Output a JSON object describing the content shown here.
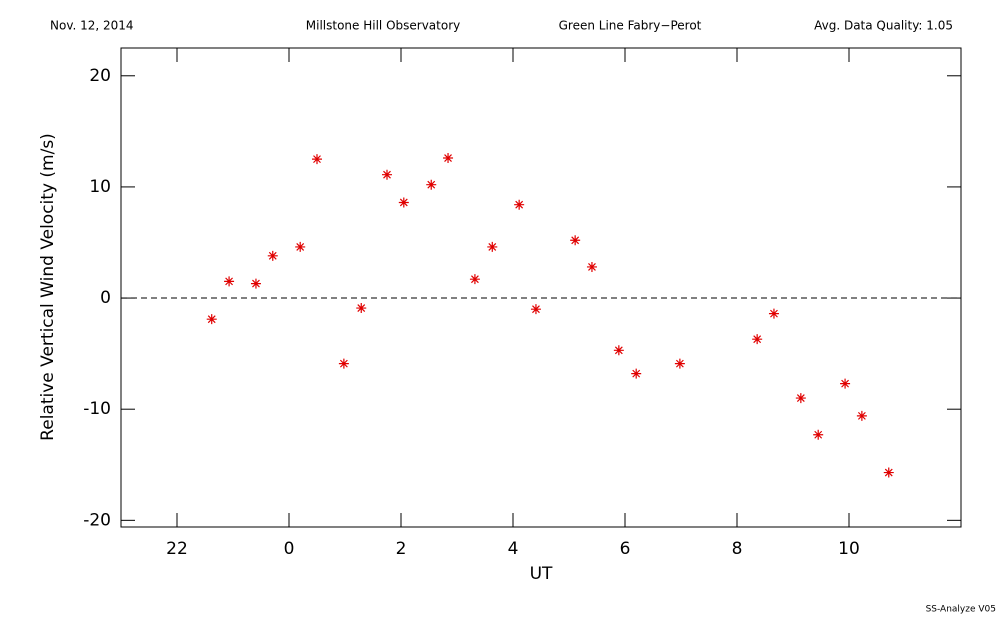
{
  "chart_data": {
    "type": "scatter",
    "header": [
      "Nov. 12, 2014",
      "Millstone Hill Observatory",
      "Green Line Fabry−Perot",
      "Avg. Data Quality: 1.05"
    ],
    "footer": "SS-Analyze V05",
    "x_label": "UT",
    "y_label": "Relative Vertical Wind Velocity (m/s)",
    "color": "#e00000",
    "marker": "asterisk",
    "reference_line": 0,
    "xlim": [
      -3,
      12
    ],
    "xticks": [
      {
        "value": -2,
        "label": "22"
      },
      0,
      2,
      4,
      6,
      8,
      10
    ],
    "ylim": [
      -20.6,
      22.5
    ],
    "yticks": [
      -20,
      -10,
      0,
      10,
      20
    ],
    "x": [
      -1.38,
      -1.07,
      -0.59,
      -0.29,
      0.2,
      0.5,
      0.98,
      1.29,
      1.75,
      2.05,
      2.54,
      2.84,
      3.32,
      3.63,
      4.11,
      4.41,
      5.11,
      5.41,
      5.89,
      6.2,
      6.98,
      8.36,
      8.66,
      9.14,
      9.45,
      9.93,
      10.23,
      10.71
    ],
    "values": [
      -1.9,
      1.5,
      1.3,
      3.8,
      4.6,
      12.5,
      -5.9,
      -0.9,
      11.1,
      8.6,
      10.2,
      12.6,
      1.7,
      4.6,
      8.4,
      -1.0,
      5.2,
      2.8,
      -4.7,
      -6.8,
      -5.9,
      -3.7,
      -1.4,
      -9.0,
      -12.3,
      -7.7,
      -10.6,
      -15.7
    ]
  }
}
